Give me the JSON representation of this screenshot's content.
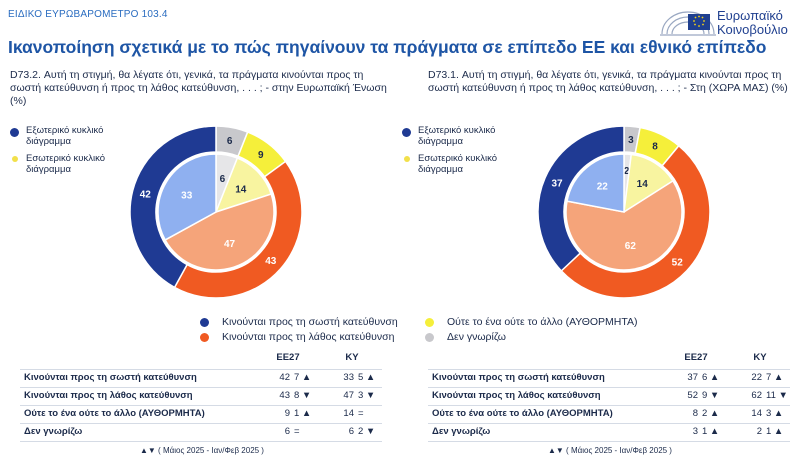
{
  "header": {
    "top_label": "ΕΙΔΙΚΟ ΕΥΡΩΒΑΡΟΜΕΤΡΟ 103.4",
    "logo_line1": "Ευρωπαϊκό",
    "logo_line2": "Κοινοβούλιο",
    "title": "Ικανοποίηση σχετικά με το πώς πηγαίνουν τα πράγματα σε επίπεδο ΕΕ και εθνικό επίπεδο"
  },
  "colors": {
    "right_direction_outer": "#1f3a93",
    "wrong_direction_outer": "#f05a22",
    "neither_outer": "#f5ef3a",
    "dk_outer": "#c8c8cc",
    "right_direction_inner": "#8fb0f0",
    "wrong_direction_inner": "#f5a47a",
    "neither_inner": "#f8f4a0",
    "dk_inner": "#e6e6e8"
  },
  "chart_data": [
    {
      "type": "pie",
      "title": "D73.2. Αυτή τη στιγμή, θα λέγατε ότι, γενικά, τα πράγματα κινούνται προς τη σωστή κατεύθυνση ή προς τη λάθος κατεύθυνση, . . . ; - στην Ευρωπαϊκή Ένωση (%)",
      "ring_legend": [
        "Εξωτερικό κυκλικό διάγραμμα",
        "Εσωτερικό κυκλικό διάγραμμα"
      ],
      "categories": [
        "Κινούνται προς τη σωστή κατεύθυνση",
        "Κινούνται προς τη λάθος κατεύθυνση",
        "Ούτε το ένα ούτε το άλλο (ΑΥΘΟΡΜΗΤΑ)",
        "Δεν γνωρίζω"
      ],
      "series": [
        {
          "name": "Εξωτερικό κυκλικό διάγραμμα",
          "values": [
            42,
            43,
            9,
            6
          ]
        },
        {
          "name": "Εσωτερικό κυκλικό διάγραμμα",
          "values": [
            33,
            47,
            14,
            6
          ]
        }
      ]
    },
    {
      "type": "pie",
      "title": "D73.1. Αυτή τη στιγμή, θα λέγατε ότι, γενικά, τα πράγματα κινούνται προς τη σωστή κατεύθυνση ή προς τη λάθος κατεύθυνση, . . . ; - Στη (ΧΩΡΑ ΜΑΣ) (%)",
      "ring_legend": [
        "Εξωτερικό κυκλικό διάγραμμα",
        "Εσωτερικό κυκλικό διάγραμμα"
      ],
      "categories": [
        "Κινούνται προς τη σωστή κατεύθυνση",
        "Κινούνται προς τη λάθος κατεύθυνση",
        "Ούτε το ένα ούτε το άλλο (ΑΥΘΟΡΜΗΤΑ)",
        "Δεν γνωρίζω"
      ],
      "series": [
        {
          "name": "Εξωτερικό κυκλικό διάγραμμα",
          "values": [
            37,
            52,
            8,
            3
          ]
        },
        {
          "name": "Εσωτερικό κυκλικό διάγραμμα",
          "values": [
            22,
            62,
            14,
            2
          ]
        }
      ]
    },
    {
      "type": "table",
      "columns": [
        "ΕΕ27",
        "ΚΥ"
      ],
      "rows": [
        {
          "label": "Κινούνται προς τη σωστή κατεύθυνση",
          "eu": "42",
          "eu_ch": "7",
          "eu_dir": "up",
          "ky": "33",
          "ky_ch": "5",
          "ky_dir": "up"
        },
        {
          "label": "Κινούνται προς τη λάθος κατεύθυνση",
          "eu": "43",
          "eu_ch": "8",
          "eu_dir": "down",
          "ky": "47",
          "ky_ch": "3",
          "ky_dir": "down"
        },
        {
          "label": "Ούτε το ένα ούτε το άλλο (ΑΥΘΟΡΜΗΤΑ)",
          "eu": "9",
          "eu_ch": "1",
          "eu_dir": "up",
          "ky": "14",
          "ky_ch": "=",
          "ky_dir": ""
        },
        {
          "label": "Δεν γνωρίζω",
          "eu": "6",
          "eu_ch": "=",
          "eu_dir": "",
          "ky": "6",
          "ky_ch": "2",
          "ky_dir": "down"
        }
      ],
      "note": "▲▼ ( Μάιος 2025 - Ιαν/Φεβ 2025 )"
    },
    {
      "type": "table",
      "columns": [
        "ΕΕ27",
        "ΚΥ"
      ],
      "rows": [
        {
          "label": "Κινούνται προς τη σωστή κατεύθυνση",
          "eu": "37",
          "eu_ch": "6",
          "eu_dir": "up",
          "ky": "22",
          "ky_ch": "7",
          "ky_dir": "up"
        },
        {
          "label": "Κινούνται προς τη λάθος κατεύθυνση",
          "eu": "52",
          "eu_ch": "9",
          "eu_dir": "down",
          "ky": "62",
          "ky_ch": "11",
          "ky_dir": "down"
        },
        {
          "label": "Ούτε το ένα ούτε το άλλο (ΑΥΘΟΡΜΗΤΑ)",
          "eu": "8",
          "eu_ch": "2",
          "eu_dir": "up",
          "ky": "14",
          "ky_ch": "3",
          "ky_dir": "up"
        },
        {
          "label": "Δεν γνωρίζω",
          "eu": "3",
          "eu_ch": "1",
          "eu_dir": "up",
          "ky": "2",
          "ky_ch": "1",
          "ky_dir": "up"
        }
      ],
      "note": "▲▼ ( Μάιος 2025 - Ιαν/Φεβ 2025 )"
    }
  ],
  "legend": {
    "items": [
      "Κινούνται προς τη σωστή κατεύθυνση",
      "Κινούνται προς τη λάθος κατεύθυνση",
      "Ούτε το ένα ούτε το άλλο (ΑΥΘΟΡΜΗΤΑ)",
      "Δεν γνωρίζω"
    ]
  }
}
